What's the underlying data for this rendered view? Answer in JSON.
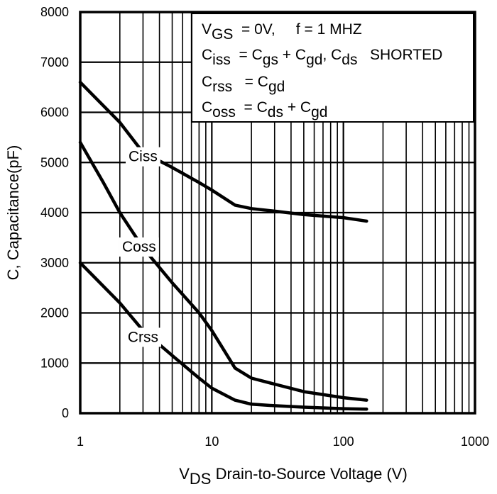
{
  "chart_data": {
    "type": "line",
    "x_scale": "log",
    "xlim": [
      1,
      1000
    ],
    "ylim": [
      0,
      8000
    ],
    "grid": true,
    "x_ticks": [
      1,
      10,
      100,
      1000
    ],
    "x_tick_labels": [
      "1",
      "10",
      "100",
      "1000"
    ],
    "y_ticks": [
      0,
      1000,
      2000,
      3000,
      4000,
      5000,
      6000,
      7000,
      8000
    ],
    "y_tick_labels": [
      "0",
      "1000",
      "2000",
      "3000",
      "4000",
      "5000",
      "6000",
      "7000",
      "8000"
    ],
    "xlabel": {
      "main": "V",
      "sub": "DS",
      "rest": " Drain-to-Source Voltage (V)"
    },
    "ylabel": "C, Capacitance(pF)",
    "legend_box": {
      "placement": "top-right",
      "lines": [
        [
          {
            "t": "V"
          },
          {
            "t": "GS",
            "sub": true
          },
          {
            "t": "  = 0V,     f = 1 MHZ"
          }
        ],
        [
          {
            "t": "C"
          },
          {
            "t": "iss",
            "sub": true
          },
          {
            "t": "  = C"
          },
          {
            "t": "gs",
            "sub": true
          },
          {
            "t": " + C"
          },
          {
            "t": "gd",
            "sub": true
          },
          {
            "t": ", C"
          },
          {
            "t": "ds",
            "sub": true
          },
          {
            "t": "   SHORTED"
          }
        ],
        [
          {
            "t": "C"
          },
          {
            "t": "rss",
            "sub": true
          },
          {
            "t": "   = C"
          },
          {
            "t": "gd",
            "sub": true
          }
        ],
        [
          {
            "t": "C"
          },
          {
            "t": "oss",
            "sub": true
          },
          {
            "t": "  = C"
          },
          {
            "t": "ds",
            "sub": true
          },
          {
            "t": " + C"
          },
          {
            "t": "gd",
            "sub": true
          }
        ]
      ]
    },
    "series": [
      {
        "name": "Ciss",
        "label_at": [
          3.0,
          5100
        ],
        "points": [
          [
            1,
            6600
          ],
          [
            2,
            5800
          ],
          [
            3,
            5200
          ],
          [
            5,
            4900
          ],
          [
            8,
            4600
          ],
          [
            10,
            4450
          ],
          [
            15,
            4150
          ],
          [
            20,
            4080
          ],
          [
            30,
            4030
          ],
          [
            50,
            3960
          ],
          [
            100,
            3900
          ],
          [
            150,
            3830
          ]
        ]
      },
      {
        "name": "Coss",
        "label_at": [
          2.8,
          3300
        ],
        "points": [
          [
            1,
            5400
          ],
          [
            1.5,
            4600
          ],
          [
            2,
            4000
          ],
          [
            3,
            3300
          ],
          [
            5,
            2600
          ],
          [
            8,
            2000
          ],
          [
            10,
            1650
          ],
          [
            15,
            900
          ],
          [
            20,
            700
          ],
          [
            30,
            580
          ],
          [
            50,
            430
          ],
          [
            100,
            310
          ],
          [
            150,
            260
          ]
        ]
      },
      {
        "name": "Crss",
        "label_at": [
          3.0,
          1500
        ],
        "points": [
          [
            1,
            3000
          ],
          [
            2,
            2200
          ],
          [
            3,
            1650
          ],
          [
            5,
            1150
          ],
          [
            8,
            700
          ],
          [
            10,
            500
          ],
          [
            15,
            260
          ],
          [
            20,
            180
          ],
          [
            30,
            150
          ],
          [
            50,
            120
          ],
          [
            100,
            90
          ],
          [
            150,
            80
          ]
        ]
      }
    ]
  }
}
